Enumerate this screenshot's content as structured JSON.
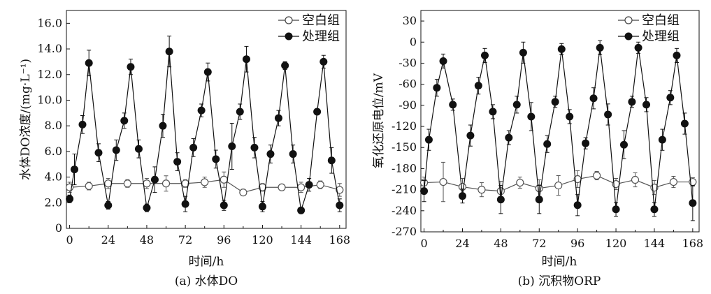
{
  "figure": {
    "panels": [
      {
        "caption": "(a) 水体DO",
        "ylabel": "水体DO浓度/(mg·L⁻¹)",
        "xlabel": "时间/h",
        "legend": [
          "空白组",
          "处理组"
        ]
      },
      {
        "caption": "(b) 沉积物ORP",
        "ylabel": "氧化还原电位/mV",
        "xlabel": "时间/h",
        "legend": [
          "空白组",
          "处理组"
        ]
      }
    ]
  },
  "chart_data": [
    {
      "type": "line",
      "title": "",
      "caption": "(a) 水体DO",
      "xlabel": "时间/h",
      "ylabel": "水体DO浓度/(mg·L⁻¹)",
      "xlim": [
        -2,
        172
      ],
      "ylim": [
        0,
        17
      ],
      "xticks": [
        0,
        24,
        48,
        72,
        96,
        120,
        144,
        168
      ],
      "yticks": [
        0,
        2.0,
        4.0,
        6.0,
        8.0,
        10.0,
        12.0,
        14.0,
        16.0
      ],
      "ytick_labels": [
        "0",
        "2.0",
        "4.0",
        "6.0",
        "8.0",
        "10.0",
        "12.0",
        "14.0",
        "16.0"
      ],
      "legend_position": "top-right",
      "series": [
        {
          "name": "空白组",
          "marker": "open-circle",
          "x": [
            0,
            12,
            24,
            36,
            48,
            60,
            72,
            84,
            96,
            108,
            120,
            132,
            144,
            156,
            168
          ],
          "y": [
            3.2,
            3.3,
            3.5,
            3.5,
            3.5,
            3.5,
            3.5,
            3.6,
            3.8,
            2.8,
            3.2,
            3.2,
            3.2,
            3.4,
            3.0
          ],
          "err": [
            0.4,
            0.3,
            0.4,
            0.3,
            0.4,
            0.6,
            0.3,
            0.4,
            0.6,
            0.2,
            0.3,
            0.2,
            0.4,
            0.3,
            0.5
          ]
        },
        {
          "name": "处理组",
          "marker": "filled-circle",
          "x": [
            0,
            3,
            8,
            12,
            18,
            24,
            29,
            34,
            38,
            43,
            48,
            53,
            58,
            62,
            67,
            72,
            77,
            82,
            86,
            91,
            96,
            101,
            106,
            110,
            115,
            120,
            125,
            130,
            134,
            139,
            144,
            149,
            154,
            158,
            163,
            168
          ],
          "y": [
            2.3,
            4.6,
            8.1,
            12.9,
            5.9,
            1.8,
            6.1,
            8.4,
            12.6,
            6.2,
            1.6,
            3.8,
            8.0,
            13.8,
            5.2,
            1.9,
            6.3,
            9.2,
            12.2,
            5.4,
            1.8,
            6.4,
            9.1,
            13.2,
            6.3,
            1.7,
            5.8,
            8.6,
            12.7,
            5.8,
            1.4,
            3.4,
            9.1,
            13.0,
            5.3,
            1.8
          ],
          "err": [
            0.3,
            1.2,
            0.7,
            1.0,
            0.7,
            0.3,
            0.8,
            0.6,
            0.6,
            0.7,
            0.3,
            1.0,
            0.9,
            1.2,
            0.7,
            0.6,
            0.7,
            0.5,
            0.7,
            0.7,
            0.4,
            1.8,
            0.6,
            1.0,
            0.8,
            0.4,
            0.7,
            0.6,
            0.3,
            0.7,
            0.2,
            0.5,
            0.2,
            0.5,
            1.0,
            0.5
          ]
        }
      ]
    },
    {
      "type": "line",
      "title": "",
      "caption": "(b) 沉积物ORP",
      "xlabel": "时间/h",
      "ylabel": "氧化还原电位/mV",
      "xlim": [
        -2,
        172
      ],
      "ylim": [
        -270,
        45
      ],
      "xticks": [
        0,
        24,
        48,
        72,
        96,
        120,
        144,
        168
      ],
      "yticks": [
        -270,
        -240,
        -210,
        -180,
        -150,
        -120,
        -90,
        -60,
        -30,
        0,
        30
      ],
      "ytick_labels": [
        "-270",
        "-240",
        "-210",
        "-180",
        "-150",
        "-120",
        "-90",
        "-60",
        "-30",
        "0",
        "30"
      ],
      "legend_position": "top-right",
      "series": [
        {
          "name": "空白组",
          "marker": "open-circle",
          "x": [
            0,
            12,
            24,
            36,
            48,
            60,
            72,
            84,
            96,
            108,
            120,
            132,
            144,
            156,
            168
          ],
          "y": [
            -200,
            -199,
            -206,
            -210,
            -212,
            -200,
            -208,
            -204,
            -195,
            -190,
            -202,
            -196,
            -207,
            -199,
            -199
          ],
          "err": [
            8,
            28,
            12,
            10,
            14,
            8,
            12,
            14,
            12,
            6,
            8,
            10,
            10,
            8,
            6
          ]
        },
        {
          "name": "处理组",
          "marker": "filled-circle",
          "x": [
            0,
            3,
            8,
            12,
            18,
            24,
            29,
            34,
            38,
            43,
            48,
            53,
            58,
            62,
            67,
            72,
            77,
            82,
            86,
            91,
            96,
            101,
            106,
            110,
            115,
            120,
            125,
            130,
            134,
            139,
            144,
            149,
            154,
            158,
            163,
            168
          ],
          "y": [
            -212,
            -139,
            -65,
            -27,
            -89,
            -219,
            -133,
            -62,
            -19,
            -99,
            -224,
            -136,
            -89,
            -15,
            -106,
            -224,
            -145,
            -85,
            -10,
            -106,
            -232,
            -144,
            -80,
            -8,
            -103,
            -238,
            -146,
            -85,
            -8,
            -89,
            -238,
            -139,
            -79,
            -19,
            -116,
            -229
          ],
          "err": [
            15,
            15,
            12,
            10,
            8,
            10,
            15,
            12,
            10,
            10,
            20,
            10,
            12,
            15,
            20,
            20,
            12,
            8,
            8,
            10,
            15,
            8,
            15,
            10,
            15,
            10,
            20,
            8,
            8,
            10,
            10,
            15,
            10,
            10,
            15,
            25
          ]
        }
      ]
    }
  ]
}
